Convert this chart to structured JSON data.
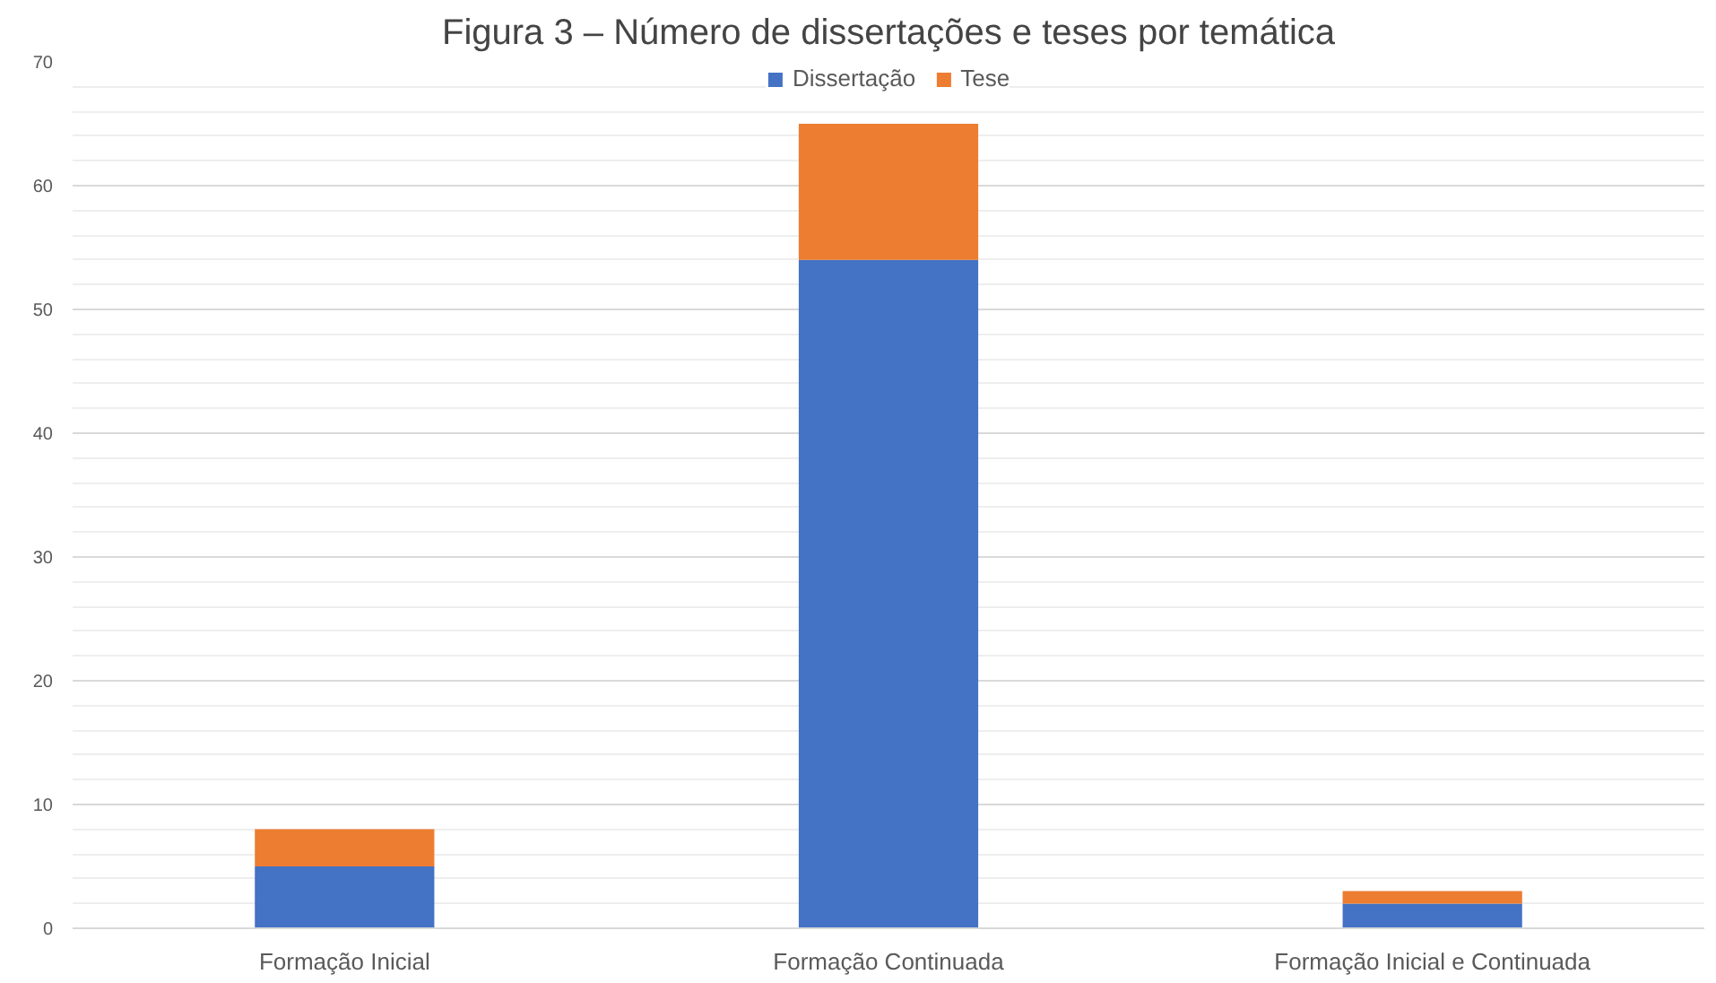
{
  "chart_data": {
    "type": "bar",
    "title": "Figura 3 – Número de dissertações e teses por temática",
    "categories": [
      "Formação Inicial",
      "Formação Continuada",
      "Formação Inicial e Continuada"
    ],
    "stacked": true,
    "series": [
      {
        "name": "Dissertação",
        "color": "#4472c4",
        "values": [
          5,
          54,
          2
        ]
      },
      {
        "name": "Tese",
        "color": "#ed7d31",
        "values": [
          3,
          11,
          1
        ]
      }
    ],
    "ylim": [
      0,
      70
    ],
    "yticks": [
      0,
      10,
      20,
      30,
      40,
      50,
      60,
      70
    ],
    "grid": "y",
    "legend": "top"
  }
}
